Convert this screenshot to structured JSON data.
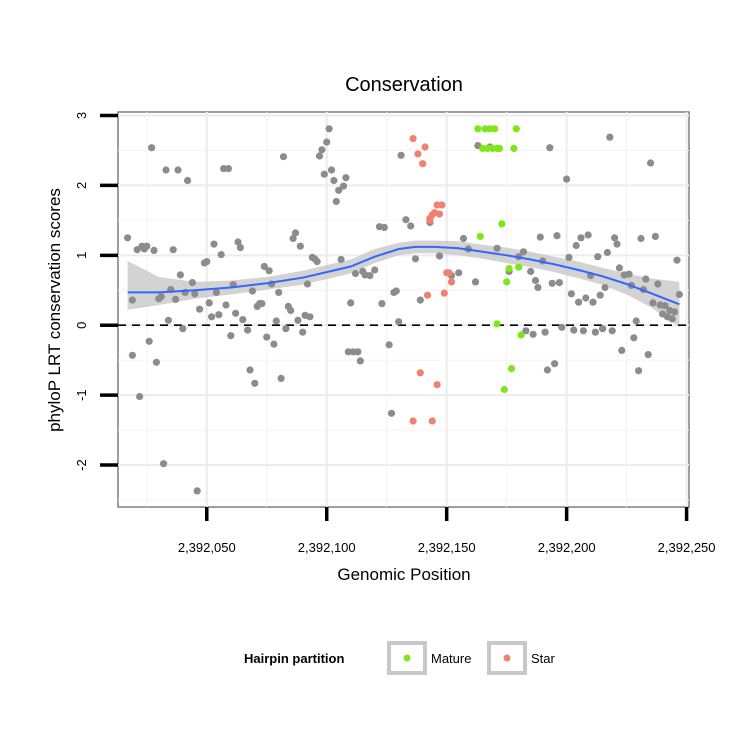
{
  "chart_data": {
    "type": "scatter",
    "title": "Conservation",
    "xlabel": "Genomic Position",
    "ylabel": "phyloP LRT conservation scores",
    "xlim": [
      2392013,
      2392251
    ],
    "ylim": [
      -2.6,
      3.05
    ],
    "x_ticks": [
      2392050,
      2392100,
      2392150,
      2392200,
      2392250
    ],
    "x_tick_labels": [
      "2,392,050",
      "2,392,100",
      "2,392,150",
      "2,392,200",
      "2,392,250"
    ],
    "y_ticks": [
      -2,
      -1,
      0,
      1,
      2,
      3
    ],
    "y_tick_labels": [
      "-2",
      "-1",
      "0",
      "1",
      "2",
      "3"
    ],
    "reference_line": {
      "y": 0,
      "style": "dashed"
    },
    "grid": true,
    "legend": {
      "title": "Hairpin partition",
      "position": "bottom",
      "entries": [
        {
          "label": "Mature",
          "color": "#7fe718"
        },
        {
          "label": "Star",
          "color": "#f08070"
        }
      ]
    },
    "colors": {
      "other": "#8c8c8c",
      "smooth": "#3366ff",
      "band": "#c8c8c8"
    },
    "smooth": {
      "x": [
        2392017,
        2392030,
        2392045,
        2392060,
        2392075,
        2392090,
        2392100,
        2392110,
        2392120,
        2392130,
        2392137,
        2392145,
        2392155,
        2392165,
        2392175,
        2392185,
        2392195,
        2392205,
        2392215,
        2392225,
        2392235,
        2392247
      ],
      "y": [
        0.47,
        0.47,
        0.5,
        0.54,
        0.6,
        0.68,
        0.76,
        0.84,
        0.98,
        1.09,
        1.12,
        1.12,
        1.1,
        1.05,
        1.0,
        0.94,
        0.87,
        0.79,
        0.7,
        0.59,
        0.46,
        0.3
      ],
      "lower": [
        0.22,
        0.29,
        0.38,
        0.44,
        0.51,
        0.58,
        0.66,
        0.74,
        0.89,
        1.0,
        1.03,
        1.03,
        1.0,
        0.95,
        0.89,
        0.83,
        0.76,
        0.67,
        0.58,
        0.44,
        0.26,
        -0.02
      ],
      "upper": [
        0.92,
        0.69,
        0.62,
        0.64,
        0.69,
        0.78,
        0.86,
        0.94,
        1.09,
        1.18,
        1.21,
        1.21,
        1.2,
        1.15,
        1.11,
        1.05,
        0.98,
        0.91,
        0.82,
        0.74,
        0.67,
        0.62
      ]
    },
    "series": [
      {
        "name": "Other",
        "points": [
          [
            2392017,
            1.25
          ],
          [
            2392019,
            0.36
          ],
          [
            2392019,
            -0.43
          ],
          [
            2392021,
            1.08
          ],
          [
            2392022,
            -1.02
          ],
          [
            2392023,
            1.13
          ],
          [
            2392024,
            1.09
          ],
          [
            2392025,
            1.13
          ],
          [
            2392026,
            -0.23
          ],
          [
            2392027,
            2.54
          ],
          [
            2392028,
            1.07
          ],
          [
            2392029,
            -0.53
          ],
          [
            2392030,
            0.38
          ],
          [
            2392031,
            0.41
          ],
          [
            2392032,
            -1.98
          ],
          [
            2392033,
            2.22
          ],
          [
            2392034,
            0.07
          ],
          [
            2392035,
            0.51
          ],
          [
            2392036,
            1.08
          ],
          [
            2392037,
            0.37
          ],
          [
            2392038,
            2.22
          ],
          [
            2392039,
            0.72
          ],
          [
            2392040,
            -0.05
          ],
          [
            2392041,
            0.47
          ],
          [
            2392042,
            2.07
          ],
          [
            2392044,
            0.61
          ],
          [
            2392045,
            0.45
          ],
          [
            2392046,
            -2.37
          ],
          [
            2392047,
            0.23
          ],
          [
            2392049,
            0.89
          ],
          [
            2392050,
            0.91
          ],
          [
            2392051,
            0.32
          ],
          [
            2392052,
            0.12
          ],
          [
            2392053,
            1.16
          ],
          [
            2392054,
            0.47
          ],
          [
            2392055,
            0.15
          ],
          [
            2392056,
            1.01
          ],
          [
            2392057,
            2.24
          ],
          [
            2392058,
            0.29
          ],
          [
            2392059,
            2.24
          ],
          [
            2392060,
            -0.15
          ],
          [
            2392061,
            0.58
          ],
          [
            2392062,
            0.17
          ],
          [
            2392063,
            1.19
          ],
          [
            2392064,
            1.11
          ],
          [
            2392065,
            0.08
          ],
          [
            2392067,
            -0.07
          ],
          [
            2392068,
            -0.64
          ],
          [
            2392069,
            0.49
          ],
          [
            2392070,
            -0.83
          ],
          [
            2392071,
            0.27
          ],
          [
            2392072,
            0.31
          ],
          [
            2392073,
            0.31
          ],
          [
            2392074,
            0.84
          ],
          [
            2392075,
            -0.17
          ],
          [
            2392076,
            0.78
          ],
          [
            2392077,
            0.59
          ],
          [
            2392078,
            -0.27
          ],
          [
            2392079,
            0.06
          ],
          [
            2392080,
            0.47
          ],
          [
            2392081,
            -0.76
          ],
          [
            2392082,
            2.41
          ],
          [
            2392083,
            -0.05
          ],
          [
            2392084,
            0.27
          ],
          [
            2392085,
            0.21
          ],
          [
            2392086,
            1.24
          ],
          [
            2392087,
            1.32
          ],
          [
            2392088,
            0.07
          ],
          [
            2392089,
            1.13
          ],
          [
            2392090,
            -0.1
          ],
          [
            2392091,
            0.14
          ],
          [
            2392092,
            0.59
          ],
          [
            2392093,
            0.12
          ],
          [
            2392094,
            0.97
          ],
          [
            2392095,
            0.95
          ],
          [
            2392096,
            0.91
          ],
          [
            2392097,
            2.42
          ],
          [
            2392098,
            2.51
          ],
          [
            2392099,
            2.16
          ],
          [
            2392100,
            2.62
          ],
          [
            2392101,
            2.81
          ],
          [
            2392102,
            2.22
          ],
          [
            2392103,
            2.07
          ],
          [
            2392104,
            1.77
          ],
          [
            2392105,
            1.93
          ],
          [
            2392106,
            0.94
          ],
          [
            2392107,
            1.99
          ],
          [
            2392108,
            2.11
          ],
          [
            2392109,
            -0.38
          ],
          [
            2392110,
            0.32
          ],
          [
            2392111,
            -0.38
          ],
          [
            2392112,
            0.74
          ],
          [
            2392113,
            -0.38
          ],
          [
            2392114,
            -0.51
          ],
          [
            2392115,
            0.77
          ],
          [
            2392116,
            0.72
          ],
          [
            2392118,
            0.71
          ],
          [
            2392120,
            0.79
          ],
          [
            2392122,
            1.41
          ],
          [
            2392123,
            0.31
          ],
          [
            2392124,
            1.4
          ],
          [
            2392126,
            -0.28
          ],
          [
            2392127,
            -1.26
          ],
          [
            2392128,
            0.47
          ],
          [
            2392129,
            0.49
          ],
          [
            2392130,
            0.05
          ],
          [
            2392131,
            2.43
          ],
          [
            2392133,
            1.51
          ],
          [
            2392135,
            1.42
          ],
          [
            2392137,
            0.95
          ],
          [
            2392139,
            0.36
          ],
          [
            2392143,
            1.47
          ],
          [
            2392147,
            0.99
          ],
          [
            2392152,
            0.71
          ],
          [
            2392155,
            0.75
          ],
          [
            2392157,
            1.24
          ],
          [
            2392159,
            1.09
          ],
          [
            2392162,
            0.62
          ],
          [
            2392163,
            2.57
          ],
          [
            2392168,
            2.55
          ],
          [
            2392171,
            1.1
          ],
          [
            2392176,
            0.77
          ],
          [
            2392180,
            0.98
          ],
          [
            2392182,
            1.05
          ],
          [
            2392183,
            -0.08
          ],
          [
            2392185,
            0.77
          ],
          [
            2392186,
            -0.13
          ],
          [
            2392187,
            0.64
          ],
          [
            2392188,
            0.54
          ],
          [
            2392189,
            1.26
          ],
          [
            2392190,
            0.92
          ],
          [
            2392191,
            -0.1
          ],
          [
            2392192,
            -0.64
          ],
          [
            2392193,
            2.54
          ],
          [
            2392194,
            0.6
          ],
          [
            2392195,
            -0.55
          ],
          [
            2392196,
            1.28
          ],
          [
            2392197,
            0.61
          ],
          [
            2392198,
            -0.03
          ],
          [
            2392200,
            2.09
          ],
          [
            2392201,
            0.97
          ],
          [
            2392202,
            0.45
          ],
          [
            2392203,
            -0.07
          ],
          [
            2392204,
            1.14
          ],
          [
            2392205,
            0.33
          ],
          [
            2392206,
            1.25
          ],
          [
            2392207,
            -0.08
          ],
          [
            2392208,
            0.39
          ],
          [
            2392209,
            1.29
          ],
          [
            2392210,
            0.71
          ],
          [
            2392211,
            0.33
          ],
          [
            2392212,
            -0.1
          ],
          [
            2392213,
            0.98
          ],
          [
            2392214,
            0.43
          ],
          [
            2392215,
            -0.05
          ],
          [
            2392216,
            0.54
          ],
          [
            2392217,
            1.04
          ],
          [
            2392218,
            2.69
          ],
          [
            2392219,
            -0.08
          ],
          [
            2392220,
            1.25
          ],
          [
            2392221,
            1.16
          ],
          [
            2392222,
            0.82
          ],
          [
            2392223,
            -0.36
          ],
          [
            2392224,
            0.72
          ],
          [
            2392226,
            0.73
          ],
          [
            2392227,
            0.57
          ],
          [
            2392228,
            -0.18
          ],
          [
            2392229,
            0.06
          ],
          [
            2392230,
            -0.65
          ],
          [
            2392231,
            1.24
          ],
          [
            2392232,
            0.51
          ],
          [
            2392233,
            0.66
          ],
          [
            2392234,
            -0.42
          ],
          [
            2392235,
            2.32
          ],
          [
            2392236,
            0.32
          ],
          [
            2392237,
            1.27
          ],
          [
            2392238,
            0.59
          ],
          [
            2392239,
            0.29
          ],
          [
            2392240,
            0.16
          ],
          [
            2392241,
            0.28
          ],
          [
            2392242,
            0.12
          ],
          [
            2392243,
            0.21
          ],
          [
            2392244,
            0.09
          ],
          [
            2392245,
            0.19
          ],
          [
            2392246,
            0.93
          ],
          [
            2392247,
            0.44
          ]
        ]
      },
      {
        "name": "Star",
        "points": [
          [
            2392136,
            2.67
          ],
          [
            2392136,
            -1.37
          ],
          [
            2392138,
            2.45
          ],
          [
            2392139,
            -0.68
          ],
          [
            2392140,
            2.31
          ],
          [
            2392141,
            2.55
          ],
          [
            2392142,
            0.43
          ],
          [
            2392143,
            1.5
          ],
          [
            2392143,
            1.53
          ],
          [
            2392144,
            1.58
          ],
          [
            2392144,
            -1.37
          ],
          [
            2392145,
            1.61
          ],
          [
            2392146,
            1.72
          ],
          [
            2392146,
            -0.85
          ],
          [
            2392147,
            1.59
          ],
          [
            2392148,
            1.72
          ],
          [
            2392149,
            0.46
          ],
          [
            2392150,
            0.75
          ],
          [
            2392151,
            0.75
          ],
          [
            2392152,
            0.62
          ]
        ]
      },
      {
        "name": "Mature",
        "points": [
          [
            2392163,
            2.81
          ],
          [
            2392164,
            1.27
          ],
          [
            2392165,
            2.53
          ],
          [
            2392166,
            2.81
          ],
          [
            2392167,
            2.53
          ],
          [
            2392168,
            2.81
          ],
          [
            2392169,
            2.53
          ],
          [
            2392170,
            2.81
          ],
          [
            2392171,
            2.53
          ],
          [
            2392171,
            0.02
          ],
          [
            2392172,
            2.53
          ],
          [
            2392173,
            1.45
          ],
          [
            2392174,
            -0.92
          ],
          [
            2392175,
            0.62
          ],
          [
            2392176,
            0.81
          ],
          [
            2392177,
            -0.62
          ],
          [
            2392178,
            2.53
          ],
          [
            2392179,
            2.81
          ],
          [
            2392180,
            0.83
          ],
          [
            2392181,
            -0.14
          ]
        ]
      }
    ]
  }
}
